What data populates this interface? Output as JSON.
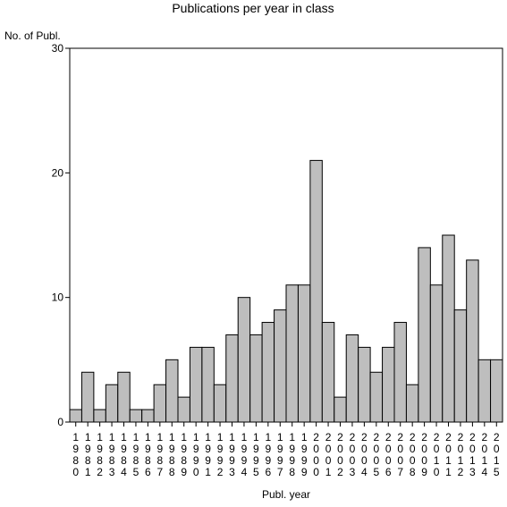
{
  "chart_data": {
    "type": "bar",
    "title": "Publications per year in class",
    "xlabel": "Publ. year",
    "ylabel": "No. of Publ.",
    "ylim": [
      0,
      30
    ],
    "yticks": [
      0,
      10,
      20,
      30
    ],
    "grid": false,
    "bar_color": "#bebebe",
    "categories": [
      "1980",
      "1981",
      "1982",
      "1983",
      "1984",
      "1985",
      "1986",
      "1987",
      "1988",
      "1989",
      "1990",
      "1991",
      "1992",
      "1993",
      "1994",
      "1995",
      "1996",
      "1997",
      "1998",
      "1999",
      "2000",
      "2001",
      "2002",
      "2003",
      "2004",
      "2005",
      "2006",
      "2007",
      "2008",
      "2009",
      "2010",
      "2011",
      "2012",
      "2013",
      "2014",
      "2015"
    ],
    "values": [
      1,
      4,
      1,
      3,
      4,
      1,
      1,
      3,
      5,
      2,
      6,
      6,
      3,
      7,
      10,
      7,
      8,
      9,
      11,
      11,
      21,
      8,
      2,
      7,
      6,
      4,
      6,
      8,
      3,
      14,
      11,
      15,
      9,
      13,
      5,
      5
    ]
  }
}
